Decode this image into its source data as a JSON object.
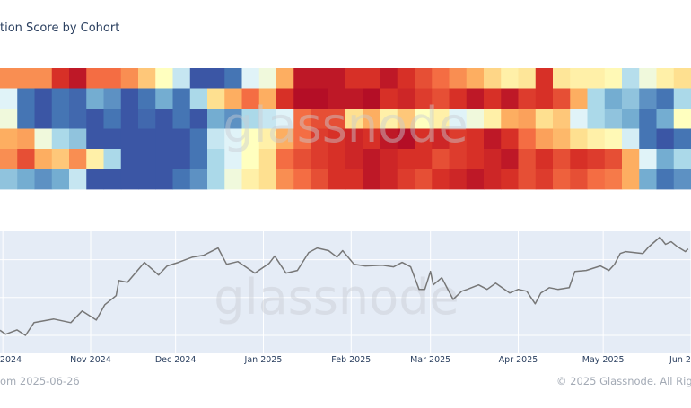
{
  "header": {
    "title": "tion Score by Cohort"
  },
  "watermark": "glassnode",
  "footer": {
    "left": "om 2025-06-26",
    "right": "© 2025 Glassnode. All Rig"
  },
  "chart_data": [
    {
      "type": "heatmap",
      "title": "tion Score by Cohort",
      "colorscale": [
        "#313695",
        "#4575b4",
        "#74add1",
        "#abd9e9",
        "#e0f3f8",
        "#ffffbf",
        "#fee090",
        "#fdae61",
        "#f46d43",
        "#d73027",
        "#a50026"
      ],
      "value_range": [
        0,
        1
      ],
      "rows": [
        [
          0.75,
          0.75,
          0.75,
          0.9,
          0.95,
          0.8,
          0.8,
          0.75,
          0.65,
          0.5,
          0.35,
          0.05,
          0.05,
          0.1,
          0.4,
          0.45,
          0.7,
          0.95,
          0.95,
          0.95,
          0.9,
          0.9,
          0.95,
          0.9,
          0.85,
          0.8,
          0.75,
          0.7,
          0.62,
          0.55,
          0.58,
          0.9,
          0.58,
          0.55,
          0.55,
          0.52,
          0.32,
          0.45,
          0.55,
          0.6
        ],
        [
          0.4,
          0.1,
          0.05,
          0.1,
          0.08,
          0.2,
          0.15,
          0.05,
          0.1,
          0.2,
          0.1,
          0.3,
          0.6,
          0.7,
          0.8,
          0.7,
          0.9,
          0.97,
          0.97,
          0.95,
          0.95,
          0.97,
          0.9,
          0.92,
          0.88,
          0.85,
          0.9,
          0.95,
          0.9,
          0.95,
          0.88,
          0.9,
          0.85,
          0.7,
          0.3,
          0.2,
          0.25,
          0.15,
          0.1,
          0.3
        ],
        [
          0.45,
          0.1,
          0.05,
          0.1,
          0.08,
          0.05,
          0.1,
          0.05,
          0.08,
          0.05,
          0.1,
          0.05,
          0.2,
          0.15,
          0.3,
          0.35,
          0.4,
          0.8,
          0.85,
          0.85,
          0.6,
          0.7,
          0.55,
          0.65,
          0.5,
          0.55,
          0.4,
          0.45,
          0.55,
          0.7,
          0.72,
          0.6,
          0.65,
          0.4,
          0.3,
          0.25,
          0.2,
          0.1,
          0.2,
          0.5
        ],
        [
          0.7,
          0.72,
          0.45,
          0.3,
          0.25,
          0.05,
          0.05,
          0.05,
          0.05,
          0.05,
          0.05,
          0.1,
          0.35,
          0.4,
          0.5,
          0.55,
          0.7,
          0.8,
          0.88,
          0.9,
          0.92,
          0.9,
          0.95,
          0.97,
          0.9,
          0.92,
          0.88,
          0.9,
          0.95,
          0.9,
          0.8,
          0.72,
          0.68,
          0.6,
          0.55,
          0.52,
          0.38,
          0.1,
          0.05,
          0.1
        ],
        [
          0.75,
          0.85,
          0.7,
          0.65,
          0.75,
          0.55,
          0.3,
          0.05,
          0.05,
          0.05,
          0.05,
          0.1,
          0.3,
          0.4,
          0.5,
          0.6,
          0.8,
          0.85,
          0.88,
          0.9,
          0.92,
          0.95,
          0.92,
          0.9,
          0.9,
          0.85,
          0.88,
          0.9,
          0.92,
          0.95,
          0.85,
          0.9,
          0.85,
          0.9,
          0.88,
          0.85,
          0.7,
          0.4,
          0.2,
          0.3
        ],
        [
          0.25,
          0.2,
          0.15,
          0.2,
          0.35,
          0.05,
          0.05,
          0.05,
          0.05,
          0.05,
          0.1,
          0.15,
          0.3,
          0.45,
          0.55,
          0.6,
          0.75,
          0.8,
          0.85,
          0.9,
          0.9,
          0.95,
          0.92,
          0.88,
          0.85,
          0.9,
          0.92,
          0.95,
          0.92,
          0.9,
          0.85,
          0.88,
          0.82,
          0.85,
          0.8,
          0.78,
          0.7,
          0.2,
          0.1,
          0.15
        ]
      ]
    },
    {
      "type": "line",
      "x_range": [
        "2024-09-30",
        "2025-06-01"
      ],
      "y_range": [
        50500,
        115000
      ],
      "y_gridlines": [
        60000,
        80000,
        100000
      ],
      "grid": true,
      "line_color": "#777777",
      "plot_bg": "#e5ecf6",
      "x_ticks": [
        {
          "date": "2024-10-01",
          "label": "2024"
        },
        {
          "date": "2024-11-01",
          "label": "Nov 2024"
        },
        {
          "date": "2024-12-01",
          "label": "Dec 2024"
        },
        {
          "date": "2025-01-01",
          "label": "Jan 2025"
        },
        {
          "date": "2025-02-01",
          "label": "Feb 2025"
        },
        {
          "date": "2025-03-01",
          "label": "Mar 2025"
        },
        {
          "date": "2025-04-01",
          "label": "Apr 2025"
        },
        {
          "date": "2025-05-01",
          "label": "May 2025"
        },
        {
          "date": "2025-06-01",
          "label": "Jun 2"
        }
      ],
      "x": [
        "2024-09-30",
        "2024-10-02",
        "2024-10-06",
        "2024-10-09",
        "2024-10-12",
        "2024-10-19",
        "2024-10-25",
        "2024-10-29",
        "2024-11-03",
        "2024-11-06",
        "2024-11-10",
        "2024-11-11",
        "2024-11-14",
        "2024-11-20",
        "2024-11-25",
        "2024-11-28",
        "2024-12-02",
        "2024-12-07",
        "2024-12-11",
        "2024-12-16",
        "2024-12-19",
        "2024-12-23",
        "2024-12-29",
        "2025-01-03",
        "2025-01-05",
        "2025-01-09",
        "2025-01-13",
        "2025-01-17",
        "2025-01-20",
        "2025-01-24",
        "2025-01-27",
        "2025-01-29",
        "2025-02-02",
        "2025-02-06",
        "2025-02-12",
        "2025-02-16",
        "2025-02-19",
        "2025-02-22",
        "2025-02-25",
        "2025-02-27",
        "2025-03-01",
        "2025-03-02",
        "2025-03-05",
        "2025-03-09",
        "2025-03-12",
        "2025-03-14",
        "2025-03-18",
        "2025-03-21",
        "2025-03-24",
        "2025-03-29",
        "2025-04-01",
        "2025-04-04",
        "2025-04-07",
        "2025-04-09",
        "2025-04-12",
        "2025-04-15",
        "2025-04-19",
        "2025-04-21",
        "2025-04-25",
        "2025-04-30",
        "2025-05-03",
        "2025-05-05",
        "2025-05-07",
        "2025-05-09",
        "2025-05-15",
        "2025-05-17",
        "2025-05-21",
        "2025-05-23",
        "2025-05-25",
        "2025-05-27",
        "2025-05-30",
        "2025-05-31"
      ],
      "y": [
        62700,
        60600,
        62900,
        60000,
        66700,
        68600,
        66700,
        72900,
        68100,
        76200,
        81000,
        89000,
        88000,
        98600,
        91900,
        96700,
        98600,
        101400,
        102400,
        106200,
        97600,
        99000,
        92900,
        98000,
        101900,
        92900,
        94300,
        103800,
        106200,
        104800,
        101400,
        104800,
        97600,
        96700,
        97100,
        96200,
        98600,
        96200,
        84300,
        84300,
        93800,
        86700,
        90500,
        79000,
        83300,
        84300,
        86700,
        84300,
        87600,
        82400,
        84300,
        83300,
        76700,
        82400,
        85200,
        84300,
        85200,
        93800,
        94300,
        96700,
        94300,
        97600,
        103300,
        104300,
        103300,
        106700,
        111900,
        108100,
        109500,
        107100,
        104300,
        105700
      ]
    }
  ]
}
